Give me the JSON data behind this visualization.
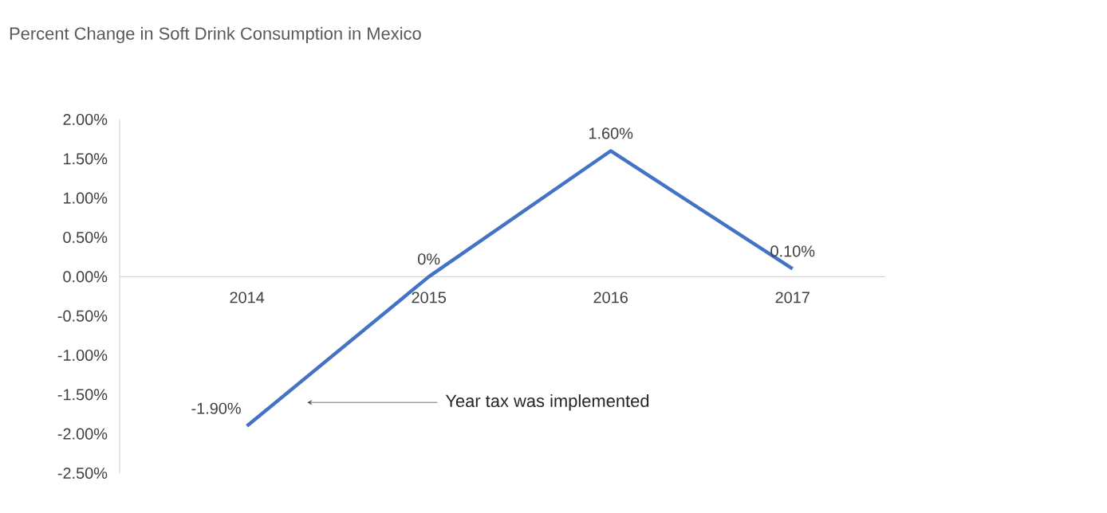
{
  "chart_data": {
    "type": "line",
    "title": "Percent Change in Soft Drink Consumption in Mexico",
    "categories": [
      "2014",
      "2015",
      "2016",
      "2017"
    ],
    "values": [
      -1.9,
      0,
      1.6,
      0.1
    ],
    "value_labels": [
      "-1.90%",
      "0%",
      "1.60%",
      "0.10%"
    ],
    "color": "#4472c4",
    "marker": "none",
    "line_style": "solid",
    "ylim": [
      -2.5,
      2.0
    ],
    "yticks": [
      {
        "value": -2.5,
        "label": "-2.50%"
      },
      {
        "value": -2.0,
        "label": "-2.00%"
      },
      {
        "value": -1.5,
        "label": "-1.50%"
      },
      {
        "value": -1.0,
        "label": "-1.00%"
      },
      {
        "value": -0.5,
        "label": "-0.50%"
      },
      {
        "value": 0,
        "label": "0.00%"
      },
      {
        "value": 0.5,
        "label": "0.50%"
      },
      {
        "value": 1.0,
        "label": "1.00%"
      },
      {
        "value": 1.5,
        "label": "1.50%"
      },
      {
        "value": 2.0,
        "label": "2.00%"
      }
    ],
    "annotations": [
      "Year tax was implemented"
    ]
  }
}
